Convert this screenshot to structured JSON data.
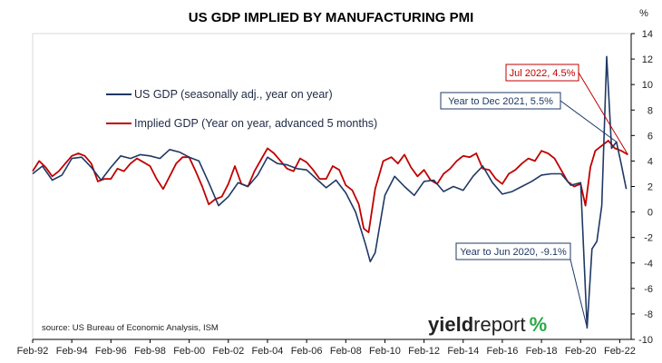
{
  "chart_data": {
    "type": "line",
    "title": "US GDP IMPLIED BY MANUFACTURING PMI",
    "unit_label": "%",
    "ylim": [
      -10,
      14
    ],
    "yticks": [
      14,
      12,
      10,
      8,
      6,
      4,
      2,
      0,
      -2,
      -4,
      -6,
      -8,
      -10
    ],
    "xlim": [
      "1992-02",
      "2022-09"
    ],
    "xtick_labels": [
      "Feb-92",
      "Feb-94",
      "Feb-96",
      "Feb-98",
      "Feb-00",
      "Feb-02",
      "Feb-04",
      "Feb-06",
      "Feb-08",
      "Feb-10",
      "Feb-12",
      "Feb-14",
      "Feb-16",
      "Feb-18",
      "Feb-20",
      "Feb-22"
    ],
    "grid": false,
    "legend_position": "upper-left",
    "colors": {
      "gdp": "#1f3864",
      "implied": "#c00000"
    },
    "series": [
      {
        "name": "US GDP (seasonally adj., year on year)",
        "key": "gdp",
        "x": [
          "1992-02",
          "1992-08",
          "1993-02",
          "1993-08",
          "1994-02",
          "1994-08",
          "1995-02",
          "1995-08",
          "1996-02",
          "1996-08",
          "1997-02",
          "1997-08",
          "1998-02",
          "1998-08",
          "1999-02",
          "1999-08",
          "2000-02",
          "2000-08",
          "2001-02",
          "2001-08",
          "2002-02",
          "2002-08",
          "2003-02",
          "2003-08",
          "2004-02",
          "2004-08",
          "2005-02",
          "2005-08",
          "2006-02",
          "2006-08",
          "2007-02",
          "2007-08",
          "2008-02",
          "2008-08",
          "2009-02",
          "2009-05",
          "2009-08",
          "2010-02",
          "2010-08",
          "2011-02",
          "2011-08",
          "2012-02",
          "2012-08",
          "2013-02",
          "2013-08",
          "2014-02",
          "2014-08",
          "2015-02",
          "2015-08",
          "2016-02",
          "2016-08",
          "2017-02",
          "2017-08",
          "2018-02",
          "2018-08",
          "2019-02",
          "2019-08",
          "2020-02",
          "2020-06",
          "2020-09",
          "2020-12",
          "2021-03",
          "2021-06",
          "2021-09",
          "2021-12",
          "2022-03",
          "2022-06"
        ],
        "values": [
          3.0,
          3.6,
          2.5,
          2.9,
          4.2,
          4.3,
          3.5,
          2.5,
          3.5,
          4.4,
          4.2,
          4.5,
          4.4,
          4.2,
          4.9,
          4.7,
          4.3,
          4.0,
          2.3,
          0.5,
          1.2,
          2.3,
          2.0,
          2.9,
          4.3,
          3.8,
          3.7,
          3.4,
          3.3,
          2.6,
          1.9,
          2.5,
          1.5,
          0.0,
          -2.5,
          -3.9,
          -3.2,
          1.3,
          2.8,
          2.0,
          1.3,
          2.4,
          2.5,
          1.6,
          2.0,
          1.7,
          2.8,
          3.6,
          2.3,
          1.4,
          1.6,
          2.0,
          2.4,
          2.9,
          3.0,
          3.0,
          2.1,
          2.3,
          -9.1,
          -2.9,
          -2.3,
          0.5,
          12.2,
          5.0,
          5.5,
          3.7,
          1.8
        ]
      },
      {
        "name": "Implied GDP (Year on year, advanced 5 months)",
        "key": "implied",
        "x": [
          "1992-02",
          "1992-06",
          "1992-10",
          "1993-02",
          "1993-06",
          "1993-10",
          "1994-02",
          "1994-06",
          "1994-10",
          "1995-02",
          "1995-06",
          "1995-10",
          "1996-02",
          "1996-06",
          "1996-10",
          "1997-02",
          "1997-06",
          "1997-10",
          "1998-02",
          "1998-06",
          "1998-10",
          "1999-02",
          "1999-06",
          "1999-10",
          "2000-02",
          "2000-06",
          "2000-10",
          "2001-02",
          "2001-06",
          "2001-10",
          "2002-02",
          "2002-06",
          "2002-10",
          "2003-02",
          "2003-06",
          "2003-10",
          "2004-02",
          "2004-06",
          "2004-10",
          "2005-02",
          "2005-06",
          "2005-10",
          "2006-02",
          "2006-06",
          "2006-10",
          "2007-02",
          "2007-06",
          "2007-10",
          "2008-02",
          "2008-06",
          "2008-10",
          "2009-01",
          "2009-04",
          "2009-08",
          "2010-01",
          "2010-06",
          "2010-10",
          "2011-02",
          "2011-06",
          "2011-10",
          "2012-02",
          "2012-06",
          "2012-10",
          "2013-02",
          "2013-06",
          "2013-10",
          "2014-02",
          "2014-06",
          "2014-10",
          "2015-02",
          "2015-06",
          "2015-10",
          "2016-02",
          "2016-06",
          "2016-10",
          "2017-02",
          "2017-06",
          "2017-10",
          "2018-02",
          "2018-06",
          "2018-10",
          "2019-02",
          "2019-06",
          "2019-10",
          "2020-02",
          "2020-05",
          "2020-08",
          "2020-11",
          "2021-03",
          "2021-07",
          "2021-11",
          "2022-03",
          "2022-07"
        ],
        "values": [
          3.2,
          4.0,
          3.5,
          2.8,
          3.2,
          3.8,
          4.4,
          4.6,
          4.4,
          3.8,
          2.4,
          2.6,
          2.6,
          3.4,
          3.2,
          3.8,
          4.2,
          3.9,
          3.6,
          2.6,
          1.8,
          2.8,
          3.8,
          4.3,
          4.3,
          3.2,
          2.0,
          0.6,
          1.0,
          1.2,
          2.2,
          3.6,
          2.2,
          2.0,
          3.2,
          4.1,
          5.0,
          4.6,
          4.0,
          3.4,
          3.2,
          4.2,
          3.9,
          3.3,
          2.6,
          2.6,
          3.6,
          3.3,
          2.1,
          1.7,
          0.6,
          -1.3,
          -1.6,
          1.8,
          4.0,
          4.3,
          3.8,
          4.5,
          3.5,
          2.8,
          3.3,
          2.5,
          2.2,
          3.0,
          3.4,
          4.0,
          4.4,
          4.3,
          4.6,
          3.4,
          3.3,
          2.6,
          2.2,
          3.0,
          3.3,
          3.8,
          4.2,
          4.0,
          4.8,
          4.6,
          4.2,
          3.3,
          2.4,
          2.0,
          2.2,
          0.5,
          3.5,
          4.8,
          5.2,
          5.6,
          5.0,
          4.8,
          4.5
        ]
      }
    ],
    "annotations": [
      {
        "text": "Jul 2022, 4.5%",
        "series": "implied",
        "target": [
          "2022-07",
          4.5
        ],
        "color": "#c00000"
      },
      {
        "text": "Year to Dec 2021, 5.5%",
        "series": "gdp",
        "target": [
          "2021-12",
          5.5
        ],
        "color": "#1f3864"
      },
      {
        "text": "Year to Jun 2020, -9.1%",
        "series": "gdp",
        "target": [
          "2020-06",
          -9.1
        ],
        "color": "#1f3864"
      }
    ],
    "source": "source: US Bureau of Economic Analysis, ISM"
  },
  "logo": {
    "part1": "yield",
    "part2": "report",
    "symbol": "%"
  }
}
